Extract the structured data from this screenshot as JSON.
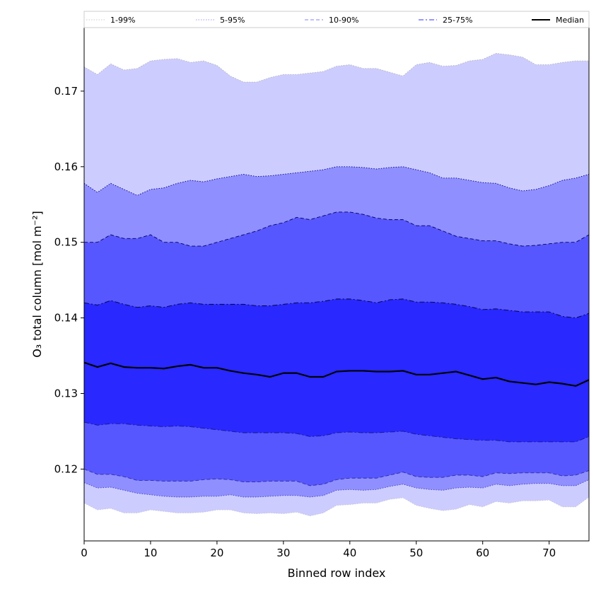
{
  "chart_data": {
    "type": "area",
    "title": "",
    "xlabel": "Binned row index",
    "ylabel": "O₃ total column [mol m⁻²]",
    "xlim": [
      0,
      76
    ],
    "ylim": [
      0.1105,
      0.1785
    ],
    "xticks": [
      0,
      10,
      20,
      30,
      40,
      50,
      60,
      70
    ],
    "yticks": [
      0.12,
      0.13,
      0.14,
      0.15,
      0.16,
      0.17
    ],
    "ytick_labels": [
      "0.12",
      "0.13",
      "0.14",
      "0.15",
      "0.16",
      "0.17"
    ],
    "legend_position": "top",
    "grid": false,
    "anchors_x": [
      0,
      2,
      4,
      6,
      8,
      10,
      12,
      14,
      16,
      18,
      20,
      22,
      24,
      26,
      28,
      30,
      32,
      34,
      36,
      38,
      40,
      42,
      44,
      46,
      48,
      50,
      52,
      54,
      56,
      58,
      60,
      62,
      64,
      66,
      68,
      70,
      72,
      74,
      76
    ],
    "bands": [
      {
        "name": "1-99%",
        "color": "#ccccff",
        "edge_color": "#b3b3b3",
        "line_style": "dotted",
        "lower": [
          0.1155,
          0.1146,
          0.1148,
          0.1142,
          0.1142,
          0.1146,
          0.1144,
          0.1142,
          0.1142,
          0.1143,
          0.1146,
          0.1146,
          0.1142,
          0.1141,
          0.1142,
          0.1141,
          0.1143,
          0.1138,
          0.1142,
          0.1152,
          0.1153,
          0.1155,
          0.1155,
          0.116,
          0.1162,
          0.1152,
          0.1148,
          0.1145,
          0.1147,
          0.1153,
          0.115,
          0.1157,
          0.1155,
          0.1158,
          0.1158,
          0.1159,
          0.115,
          0.115,
          0.1163
        ],
        "upper": [
          0.1732,
          0.1722,
          0.1736,
          0.1728,
          0.173,
          0.174,
          0.1742,
          0.1743,
          0.1738,
          0.174,
          0.1734,
          0.172,
          0.1712,
          0.1712,
          0.1718,
          0.1722,
          0.1722,
          0.1724,
          0.1726,
          0.1733,
          0.1735,
          0.173,
          0.173,
          0.1725,
          0.172,
          0.1735,
          0.1738,
          0.1733,
          0.1734,
          0.174,
          0.1742,
          0.175,
          0.1748,
          0.1745,
          0.1735,
          0.1735,
          0.1738,
          0.174,
          0.174
        ]
      },
      {
        "name": "5-95%",
        "color": "#8f8fff",
        "edge_color": "#000080",
        "line_style": "dotted",
        "lower": [
          0.1182,
          0.1175,
          0.1176,
          0.1172,
          0.1168,
          0.1166,
          0.1164,
          0.1163,
          0.1163,
          0.1164,
          0.1164,
          0.1166,
          0.1163,
          0.1163,
          0.1164,
          0.1165,
          0.1165,
          0.1163,
          0.1165,
          0.1172,
          0.1173,
          0.1172,
          0.1173,
          0.1177,
          0.118,
          0.1175,
          0.1173,
          0.1172,
          0.1175,
          0.1176,
          0.1175,
          0.118,
          0.1178,
          0.118,
          0.1181,
          0.1181,
          0.1178,
          0.1178,
          0.1186
        ],
        "upper": [
          0.1578,
          0.1566,
          0.1578,
          0.157,
          0.1562,
          0.157,
          0.1572,
          0.1578,
          0.1582,
          0.158,
          0.1584,
          0.1587,
          0.159,
          0.1587,
          0.1588,
          0.159,
          0.1592,
          0.1594,
          0.1596,
          0.16,
          0.16,
          0.1599,
          0.1597,
          0.1599,
          0.16,
          0.1596,
          0.1592,
          0.1585,
          0.1585,
          0.1582,
          0.1579,
          0.1578,
          0.1572,
          0.1568,
          0.157,
          0.1575,
          0.1582,
          0.1585,
          0.159
        ]
      },
      {
        "name": "10-90%",
        "color": "#5757ff",
        "edge_color": "#000060",
        "line_style": "dashed",
        "lower": [
          0.12,
          0.1193,
          0.1193,
          0.119,
          0.1185,
          0.1185,
          0.1184,
          0.1184,
          0.1184,
          0.1186,
          0.1187,
          0.1186,
          0.1183,
          0.1183,
          0.1184,
          0.1184,
          0.1184,
          0.1178,
          0.118,
          0.1186,
          0.1188,
          0.1188,
          0.1188,
          0.1192,
          0.1196,
          0.119,
          0.1189,
          0.1189,
          0.1192,
          0.1192,
          0.119,
          0.1195,
          0.1194,
          0.1195,
          0.1195,
          0.1195,
          0.1191,
          0.1192,
          0.1198
        ],
        "upper": [
          0.15,
          0.15,
          0.151,
          0.1505,
          0.1505,
          0.151,
          0.15,
          0.15,
          0.1495,
          0.1495,
          0.15,
          0.1505,
          0.151,
          0.1515,
          0.1522,
          0.1526,
          0.1533,
          0.153,
          0.1535,
          0.154,
          0.154,
          0.1537,
          0.1532,
          0.153,
          0.153,
          0.1522,
          0.1522,
          0.1515,
          0.1508,
          0.1505,
          0.1502,
          0.1502,
          0.1498,
          0.1495,
          0.1496,
          0.1498,
          0.15,
          0.15,
          0.151
        ]
      },
      {
        "name": "25-75%",
        "color": "#2828ff",
        "edge_color": "#000040",
        "line_style": "dashdot",
        "lower": [
          0.1262,
          0.1258,
          0.126,
          0.126,
          0.1258,
          0.1257,
          0.1256,
          0.1257,
          0.1256,
          0.1254,
          0.1252,
          0.125,
          0.1248,
          0.1248,
          0.1248,
          0.1248,
          0.1247,
          0.1243,
          0.1244,
          0.1248,
          0.1249,
          0.1248,
          0.1248,
          0.1249,
          0.125,
          0.1246,
          0.1244,
          0.1242,
          0.124,
          0.1239,
          0.1238,
          0.1238,
          0.1236,
          0.1236,
          0.1236,
          0.1236,
          0.1236,
          0.1236,
          0.1243
        ],
        "upper": [
          0.142,
          0.1417,
          0.1423,
          0.1418,
          0.1414,
          0.1416,
          0.1414,
          0.1418,
          0.142,
          0.1418,
          0.1418,
          0.1418,
          0.1418,
          0.1416,
          0.1416,
          0.1418,
          0.142,
          0.142,
          0.1422,
          0.1425,
          0.1425,
          0.1423,
          0.142,
          0.1424,
          0.1425,
          0.1421,
          0.1421,
          0.142,
          0.1418,
          0.1415,
          0.1411,
          0.1412,
          0.141,
          0.1408,
          0.1408,
          0.1408,
          0.1402,
          0.14,
          0.1406
        ]
      }
    ],
    "median": {
      "name": "Median",
      "color": "#000000",
      "values": [
        0.1341,
        0.1335,
        0.134,
        0.1335,
        0.1334,
        0.1334,
        0.1333,
        0.1336,
        0.1338,
        0.1334,
        0.1334,
        0.133,
        0.1327,
        0.1325,
        0.1322,
        0.1327,
        0.1327,
        0.1322,
        0.1322,
        0.1329,
        0.133,
        0.133,
        0.1329,
        0.1329,
        0.133,
        0.1325,
        0.1325,
        0.1327,
        0.1329,
        0.1324,
        0.1319,
        0.1321,
        0.1316,
        0.1314,
        0.1312,
        0.1315,
        0.1313,
        0.131,
        0.1318
      ]
    }
  }
}
